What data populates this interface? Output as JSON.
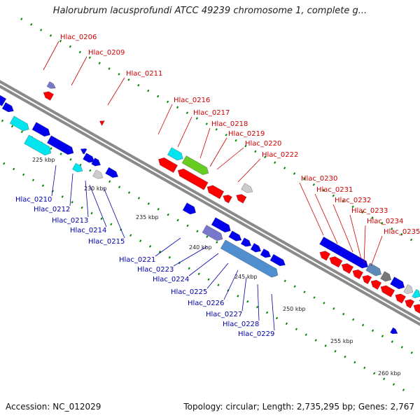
{
  "title": "Halorubrum lacusprofundi ATCC 49239 chromosome 1, complete g...",
  "footer": {
    "accession": "Accession: NC_012029",
    "summary": "Topology: circular; Length: 2,735,295 bp; Genes: 2,767"
  },
  "ticks": [
    "225 kbp",
    "230 kbp",
    "235 kbp",
    "240 kbp",
    "245 kbp",
    "250 kbp",
    "255 kbp",
    "260 kbp"
  ],
  "genes_top": [
    "Hlac_0206",
    "Hlac_0209",
    "Hlac_0211",
    "Hlac_0216",
    "Hlac_0217",
    "Hlac_0218",
    "Hlac_0219",
    "Hlac_0220",
    "Hlac_0222",
    "Hlac_0230",
    "Hlac_0231",
    "Hlac_0232",
    "Hlac_0233",
    "Hlac_0234",
    "Hlac_0235"
  ],
  "genes_bottom": [
    "Hlac_0210",
    "Hlac_0212",
    "Hlac_0213",
    "Hlac_0214",
    "Hlac_0215",
    "Hlac_0221",
    "Hlac_0223",
    "Hlac_0224",
    "Hlac_0225",
    "Hlac_0226",
    "Hlac_0227",
    "Hlac_0228",
    "Hlac_0229"
  ],
  "colors": {
    "reverse_strand": "#ff0000",
    "forward_strand": "#0000ff",
    "cyan_feature": "#00ffff",
    "green_feature": "#66cc00",
    "backbone": "#888888",
    "tick": "#008800"
  }
}
